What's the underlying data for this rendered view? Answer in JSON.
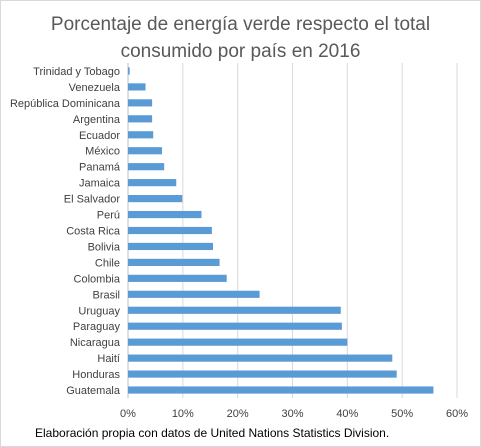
{
  "chart_data": {
    "type": "bar",
    "orientation": "horizontal",
    "title_lines": [
      "Porcentaje de energía verde respecto el total",
      "consumido por país en 2016"
    ],
    "categories": [
      "Guatemala",
      "Honduras",
      "Haití",
      "Nicaragua",
      "Paraguay",
      "Uruguay",
      "Brasil",
      "Colombia",
      "Chile",
      "Bolivia",
      "Costa Rica",
      "Perú",
      "El Salvador",
      "Jamaica",
      "Panamá",
      "México",
      "Ecuador",
      "Argentina",
      "República Dominicana",
      "Venezuela",
      "Trinidad y Tobago"
    ],
    "values": [
      0.557,
      0.49,
      0.482,
      0.4,
      0.39,
      0.388,
      0.24,
      0.18,
      0.167,
      0.155,
      0.153,
      0.134,
      0.099,
      0.088,
      0.066,
      0.062,
      0.046,
      0.044,
      0.044,
      0.032,
      0.003
    ],
    "xlim": [
      0,
      0.6
    ],
    "xticks": [
      0,
      0.1,
      0.2,
      0.3,
      0.4,
      0.5,
      0.6
    ],
    "xtick_labels": [
      "0%",
      "10%",
      "20%",
      "30%",
      "40%",
      "50%",
      "60%"
    ],
    "grid": "vertical",
    "bar_color": "#5b9bd5",
    "legend": "none",
    "source_note": "Elaboración propia con datos de United Nations Statistics Division."
  }
}
